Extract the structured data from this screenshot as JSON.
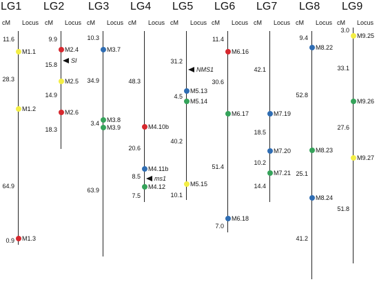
{
  "colors": {
    "yellow": "#f3ee45",
    "red": "#d6282e",
    "blue": "#2f6db3",
    "green": "#35a35a"
  },
  "header": {
    "cm_label": "cM",
    "locus_label": "Locus"
  },
  "linkage_groups": [
    {
      "title": "LG1",
      "distances": [
        "11.6",
        "28.3",
        "64.9",
        "0.9"
      ],
      "loci": [
        {
          "label": "M1.1",
          "color": "yellow",
          "type": "marker"
        },
        {
          "label": "M1.2",
          "color": "yellow",
          "type": "marker"
        },
        {
          "label": "M1.3",
          "color": "red",
          "type": "marker"
        }
      ]
    },
    {
      "title": "LG2",
      "distances": [
        "9.9",
        "15.8",
        "14.9",
        "18.3"
      ],
      "loci": [
        {
          "label": "M2.4",
          "color": "red",
          "type": "marker"
        },
        {
          "label": "SI",
          "type": "gene"
        },
        {
          "label": "M2.5",
          "color": "yellow",
          "type": "marker"
        },
        {
          "label": "M2.6",
          "color": "red",
          "type": "marker"
        }
      ]
    },
    {
      "title": "LG3",
      "distances": [
        "10.3",
        "34.9",
        "3.4",
        "63.9"
      ],
      "loci": [
        {
          "label": "M3.7",
          "color": "blue",
          "type": "marker"
        },
        {
          "label": "M3.8",
          "color": "green",
          "type": "marker"
        },
        {
          "label": "M3.9",
          "color": "green",
          "type": "marker"
        }
      ]
    },
    {
      "title": "LG4",
      "distances": [
        "48.3",
        "20.6",
        "8.5",
        "7.5"
      ],
      "loci": [
        {
          "label": "M4.10b",
          "color": "red",
          "type": "marker"
        },
        {
          "label": "M4.11b",
          "color": "blue",
          "type": "marker"
        },
        {
          "label": "ms1",
          "type": "gene"
        },
        {
          "label": "M4.12",
          "color": "green",
          "type": "marker"
        }
      ]
    },
    {
      "title": "LG5",
      "distances": [
        "31.2",
        "4.5",
        "40.2",
        "10.1"
      ],
      "loci": [
        {
          "label": "NMS1",
          "type": "gene"
        },
        {
          "label": "M5.13",
          "color": "blue",
          "type": "marker"
        },
        {
          "label": "M5.14",
          "color": "green",
          "type": "marker"
        },
        {
          "label": "M5.15",
          "color": "yellow",
          "type": "marker"
        }
      ]
    },
    {
      "title": "LG6",
      "distances": [
        "11.4",
        "30.6",
        "51.4",
        "7.0"
      ],
      "loci": [
        {
          "label": "M6.16",
          "color": "red",
          "type": "marker"
        },
        {
          "label": "M6.17",
          "color": "green",
          "type": "marker"
        },
        {
          "label": "M6.18",
          "color": "blue",
          "type": "marker"
        }
      ]
    },
    {
      "title": "LG7",
      "distances": [
        "42.1",
        "18.5",
        "10.2",
        "14.4"
      ],
      "loci": [
        {
          "label": "M7.19",
          "color": "blue",
          "type": "marker"
        },
        {
          "label": "M7.20",
          "color": "blue",
          "type": "marker"
        },
        {
          "label": "M7.21",
          "color": "green",
          "type": "marker"
        }
      ]
    },
    {
      "title": "LG8",
      "distances": [
        "9.4",
        "52.8",
        "25.1",
        "41.2"
      ],
      "loci": [
        {
          "label": "M8.22",
          "color": "blue",
          "type": "marker"
        },
        {
          "label": "M8.23",
          "color": "green",
          "type": "marker"
        },
        {
          "label": "M8.24",
          "color": "blue",
          "type": "marker"
        }
      ]
    },
    {
      "title": "LG9",
      "distances": [
        "3.0",
        "33.1",
        "27.6",
        "51.8"
      ],
      "loci": [
        {
          "label": "M9.25",
          "color": "yellow",
          "type": "marker"
        },
        {
          "label": "M9.26",
          "color": "green",
          "type": "marker"
        },
        {
          "label": "M9.27",
          "color": "yellow",
          "type": "marker"
        }
      ]
    }
  ]
}
